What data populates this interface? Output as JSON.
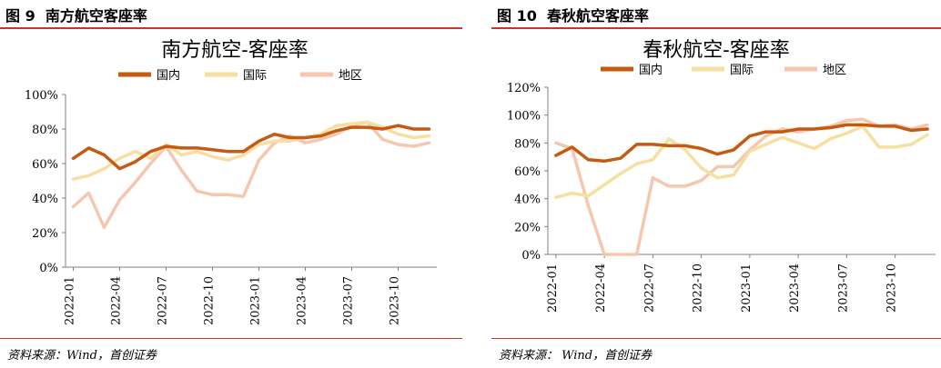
{
  "figures": [
    {
      "label": "图 9",
      "title": "南方航空客座率",
      "source": "资料来源：Wind，首创证券"
    },
    {
      "label": "图 10",
      "title": "春秋航空客座率",
      "source": "资料来源：   Wind，首创证券"
    }
  ],
  "colors": {
    "rule": "#c0392b",
    "domestic": "#c55a11",
    "international": "#f6dfa0",
    "regional": "#f4c7ae"
  },
  "chart_data": [
    {
      "type": "line",
      "title": "南方航空-客座率",
      "legend": [
        "国内",
        "国际",
        "地区"
      ],
      "x_ticks": [
        "2022-01",
        "2022-04",
        "2022-07",
        "2022-10",
        "2023-01",
        "2023-04",
        "2023-07",
        "2023-10"
      ],
      "y_ticks": [
        "0%",
        "20%",
        "40%",
        "60%",
        "80%",
        "100%"
      ],
      "ylim": [
        0,
        100
      ],
      "x": [
        "2022-01",
        "2022-02",
        "2022-03",
        "2022-04",
        "2022-05",
        "2022-06",
        "2022-07",
        "2022-08",
        "2022-09",
        "2022-10",
        "2022-11",
        "2022-12",
        "2023-01",
        "2023-02",
        "2023-03",
        "2023-04",
        "2023-05",
        "2023-06",
        "2023-07",
        "2023-08",
        "2023-09",
        "2023-10",
        "2023-11",
        "2023-12"
      ],
      "series": [
        {
          "name": "国内",
          "values": [
            63,
            69,
            65,
            57,
            61,
            67,
            70,
            69,
            69,
            68,
            67,
            67,
            73,
            77,
            75,
            75,
            76,
            79,
            81,
            81,
            80,
            82,
            80,
            80
          ]
        },
        {
          "name": "国际",
          "values": [
            51,
            53,
            57,
            63,
            67,
            63,
            71,
            65,
            67,
            64,
            62,
            65,
            71,
            73,
            73,
            75,
            77,
            82,
            83,
            84,
            81,
            77,
            75,
            76
          ]
        },
        {
          "name": "地区",
          "values": [
            35,
            43,
            23,
            39,
            49,
            60,
            70,
            56,
            44,
            42,
            42,
            41,
            62,
            72,
            76,
            72,
            74,
            77,
            82,
            84,
            74,
            71,
            70,
            72
          ]
        }
      ]
    },
    {
      "type": "line",
      "title": "春秋航空-客座率",
      "legend": [
        "国内",
        "国际",
        "地区"
      ],
      "x_ticks": [
        "2022-01",
        "2022-04",
        "2022-07",
        "2022-10",
        "2023-01",
        "2023-04",
        "2023-07",
        "2023-10"
      ],
      "y_ticks": [
        "0%",
        "20%",
        "40%",
        "60%",
        "80%",
        "100%",
        "120%"
      ],
      "ylim": [
        0,
        120
      ],
      "x": [
        "2022-01",
        "2022-02",
        "2022-03",
        "2022-04",
        "2022-05",
        "2022-06",
        "2022-07",
        "2022-08",
        "2022-09",
        "2022-10",
        "2022-11",
        "2022-12",
        "2023-01",
        "2023-02",
        "2023-03",
        "2023-04",
        "2023-05",
        "2023-06",
        "2023-07",
        "2023-08",
        "2023-09",
        "2023-10",
        "2023-11",
        "2023-12"
      ],
      "series": [
        {
          "name": "国内",
          "values": [
            71,
            77,
            68,
            67,
            69,
            79,
            79,
            78,
            78,
            76,
            72,
            75,
            85,
            88,
            88,
            90,
            90,
            91,
            93,
            93,
            92,
            92,
            89,
            90
          ]
        },
        {
          "name": "国际",
          "values": [
            41,
            44,
            42,
            50,
            58,
            65,
            68,
            83,
            75,
            62,
            55,
            57,
            74,
            79,
            84,
            80,
            76,
            83,
            87,
            92,
            77,
            77,
            79,
            86
          ]
        },
        {
          "name": "地区",
          "values": [
            80,
            76,
            35,
            0,
            0,
            0,
            55,
            49,
            49,
            53,
            63,
            63,
            75,
            85,
            90,
            88,
            90,
            92,
            96,
            97,
            92,
            93,
            90,
            93
          ]
        }
      ]
    }
  ]
}
